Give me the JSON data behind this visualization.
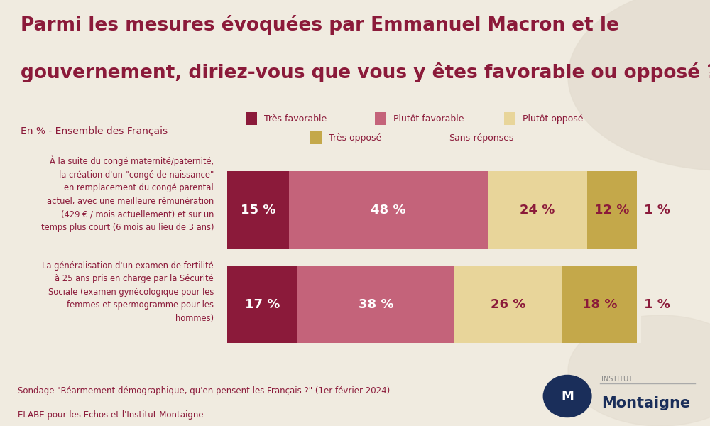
{
  "title_line1": "Parmi les mesures évoquées par Emmanuel Macron et le",
  "title_line2": "gouvernement, diriez-vous que vous y êtes favorable ou opposé ?",
  "subtitle": "En % - Ensemble des Français",
  "background_color": "#f0ebe0",
  "title_color": "#8b1a3a",
  "subtitle_color": "#8b1a3a",
  "categories": [
    "À la suite du congé maternité/paternité,\nla création d'un \"congé de naissance\"\nen remplacement du congé parental\nactuel, avec une meilleure rémunération\n(429 € / mois actuellement) et sur un\ntemps plus court (6 mois au lieu de 3 ans)",
    "La généralisation d'un examen de fertilité\nà 25 ans pris en charge par la Sécurité\nSociale (examen gynécologique pour les\nfemmes et spermogramme pour les\nhommes)"
  ],
  "series": [
    {
      "label": "Très favorable",
      "color": "#8b1a3a",
      "values": [
        15,
        17
      ]
    },
    {
      "label": "Plutôt favorable",
      "color": "#c4637a",
      "values": [
        48,
        38
      ]
    },
    {
      "label": "Plutôt opposé",
      "color": "#e8d59a",
      "values": [
        24,
        26
      ]
    },
    {
      "label": "Très opposé",
      "color": "#c4a84a",
      "values": [
        12,
        18
      ]
    },
    {
      "label": "Sans-réponses",
      "color": "#f0ebe0",
      "values": [
        1,
        1
      ]
    }
  ],
  "text_colors": {
    "on_dark": "#ffffff",
    "on_light": "#8b1a3a"
  },
  "footnote_line1": "Sondage \"Réarmement démographique, qu'en pensent les Français ?\" (1er février 2024)",
  "footnote_line2": "ELABE pour les Echos et l'Institut Montaigne",
  "footnote_color": "#8b1a3a",
  "logo_circle_color": "#1a2e5a",
  "logo_text_color": "#1a2e5a",
  "logo_label_color": "#888888"
}
